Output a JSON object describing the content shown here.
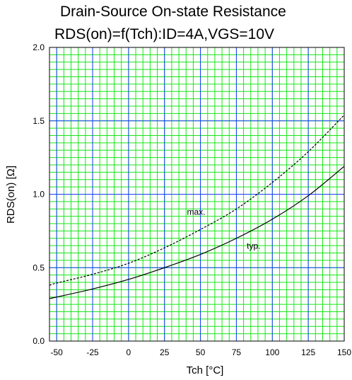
{
  "chart_data": {
    "type": "line",
    "title": "Drain-Source On-state Resistance",
    "subtitle": "RDS(on)=f(Tch):ID=4A,VGS=10V",
    "xlabel": "Tch [°C]",
    "ylabel": "RDS(on) [Ω]",
    "xlim": [
      -55,
      150
    ],
    "ylim": [
      0.0,
      2.0
    ],
    "x_ticks": [
      -50,
      -25,
      0,
      25,
      50,
      75,
      100,
      125,
      150
    ],
    "y_ticks": [
      0.0,
      0.5,
      1.0,
      1.5,
      2.0
    ],
    "x_tick_labels": [
      "-50",
      "-25",
      "0",
      "25",
      "50",
      "75",
      "100",
      "125",
      "150"
    ],
    "y_tick_labels": [
      "0.0",
      "0.5",
      "1.0",
      "1.5",
      "2.0"
    ],
    "grid": true,
    "grid_colors": {
      "major": "#1a3cff",
      "minor": "#17e617"
    },
    "series": [
      {
        "name": "typ.",
        "style": "solid",
        "x": [
          -55,
          -50,
          -25,
          0,
          25,
          50,
          75,
          100,
          125,
          150
        ],
        "y": [
          0.29,
          0.3,
          0.355,
          0.42,
          0.5,
          0.59,
          0.7,
          0.83,
          0.99,
          1.19
        ]
      },
      {
        "name": "max.",
        "style": "dashed",
        "x": [
          -55,
          -50,
          -25,
          0,
          25,
          50,
          75,
          100,
          125,
          150
        ],
        "y": [
          0.38,
          0.395,
          0.455,
          0.53,
          0.635,
          0.76,
          0.9,
          1.08,
          1.29,
          1.54
        ]
      }
    ],
    "annotations": [
      {
        "text": "max.",
        "x": 47,
        "y": 0.86
      },
      {
        "text": "typ.",
        "x": 87,
        "y": 0.63
      }
    ]
  }
}
